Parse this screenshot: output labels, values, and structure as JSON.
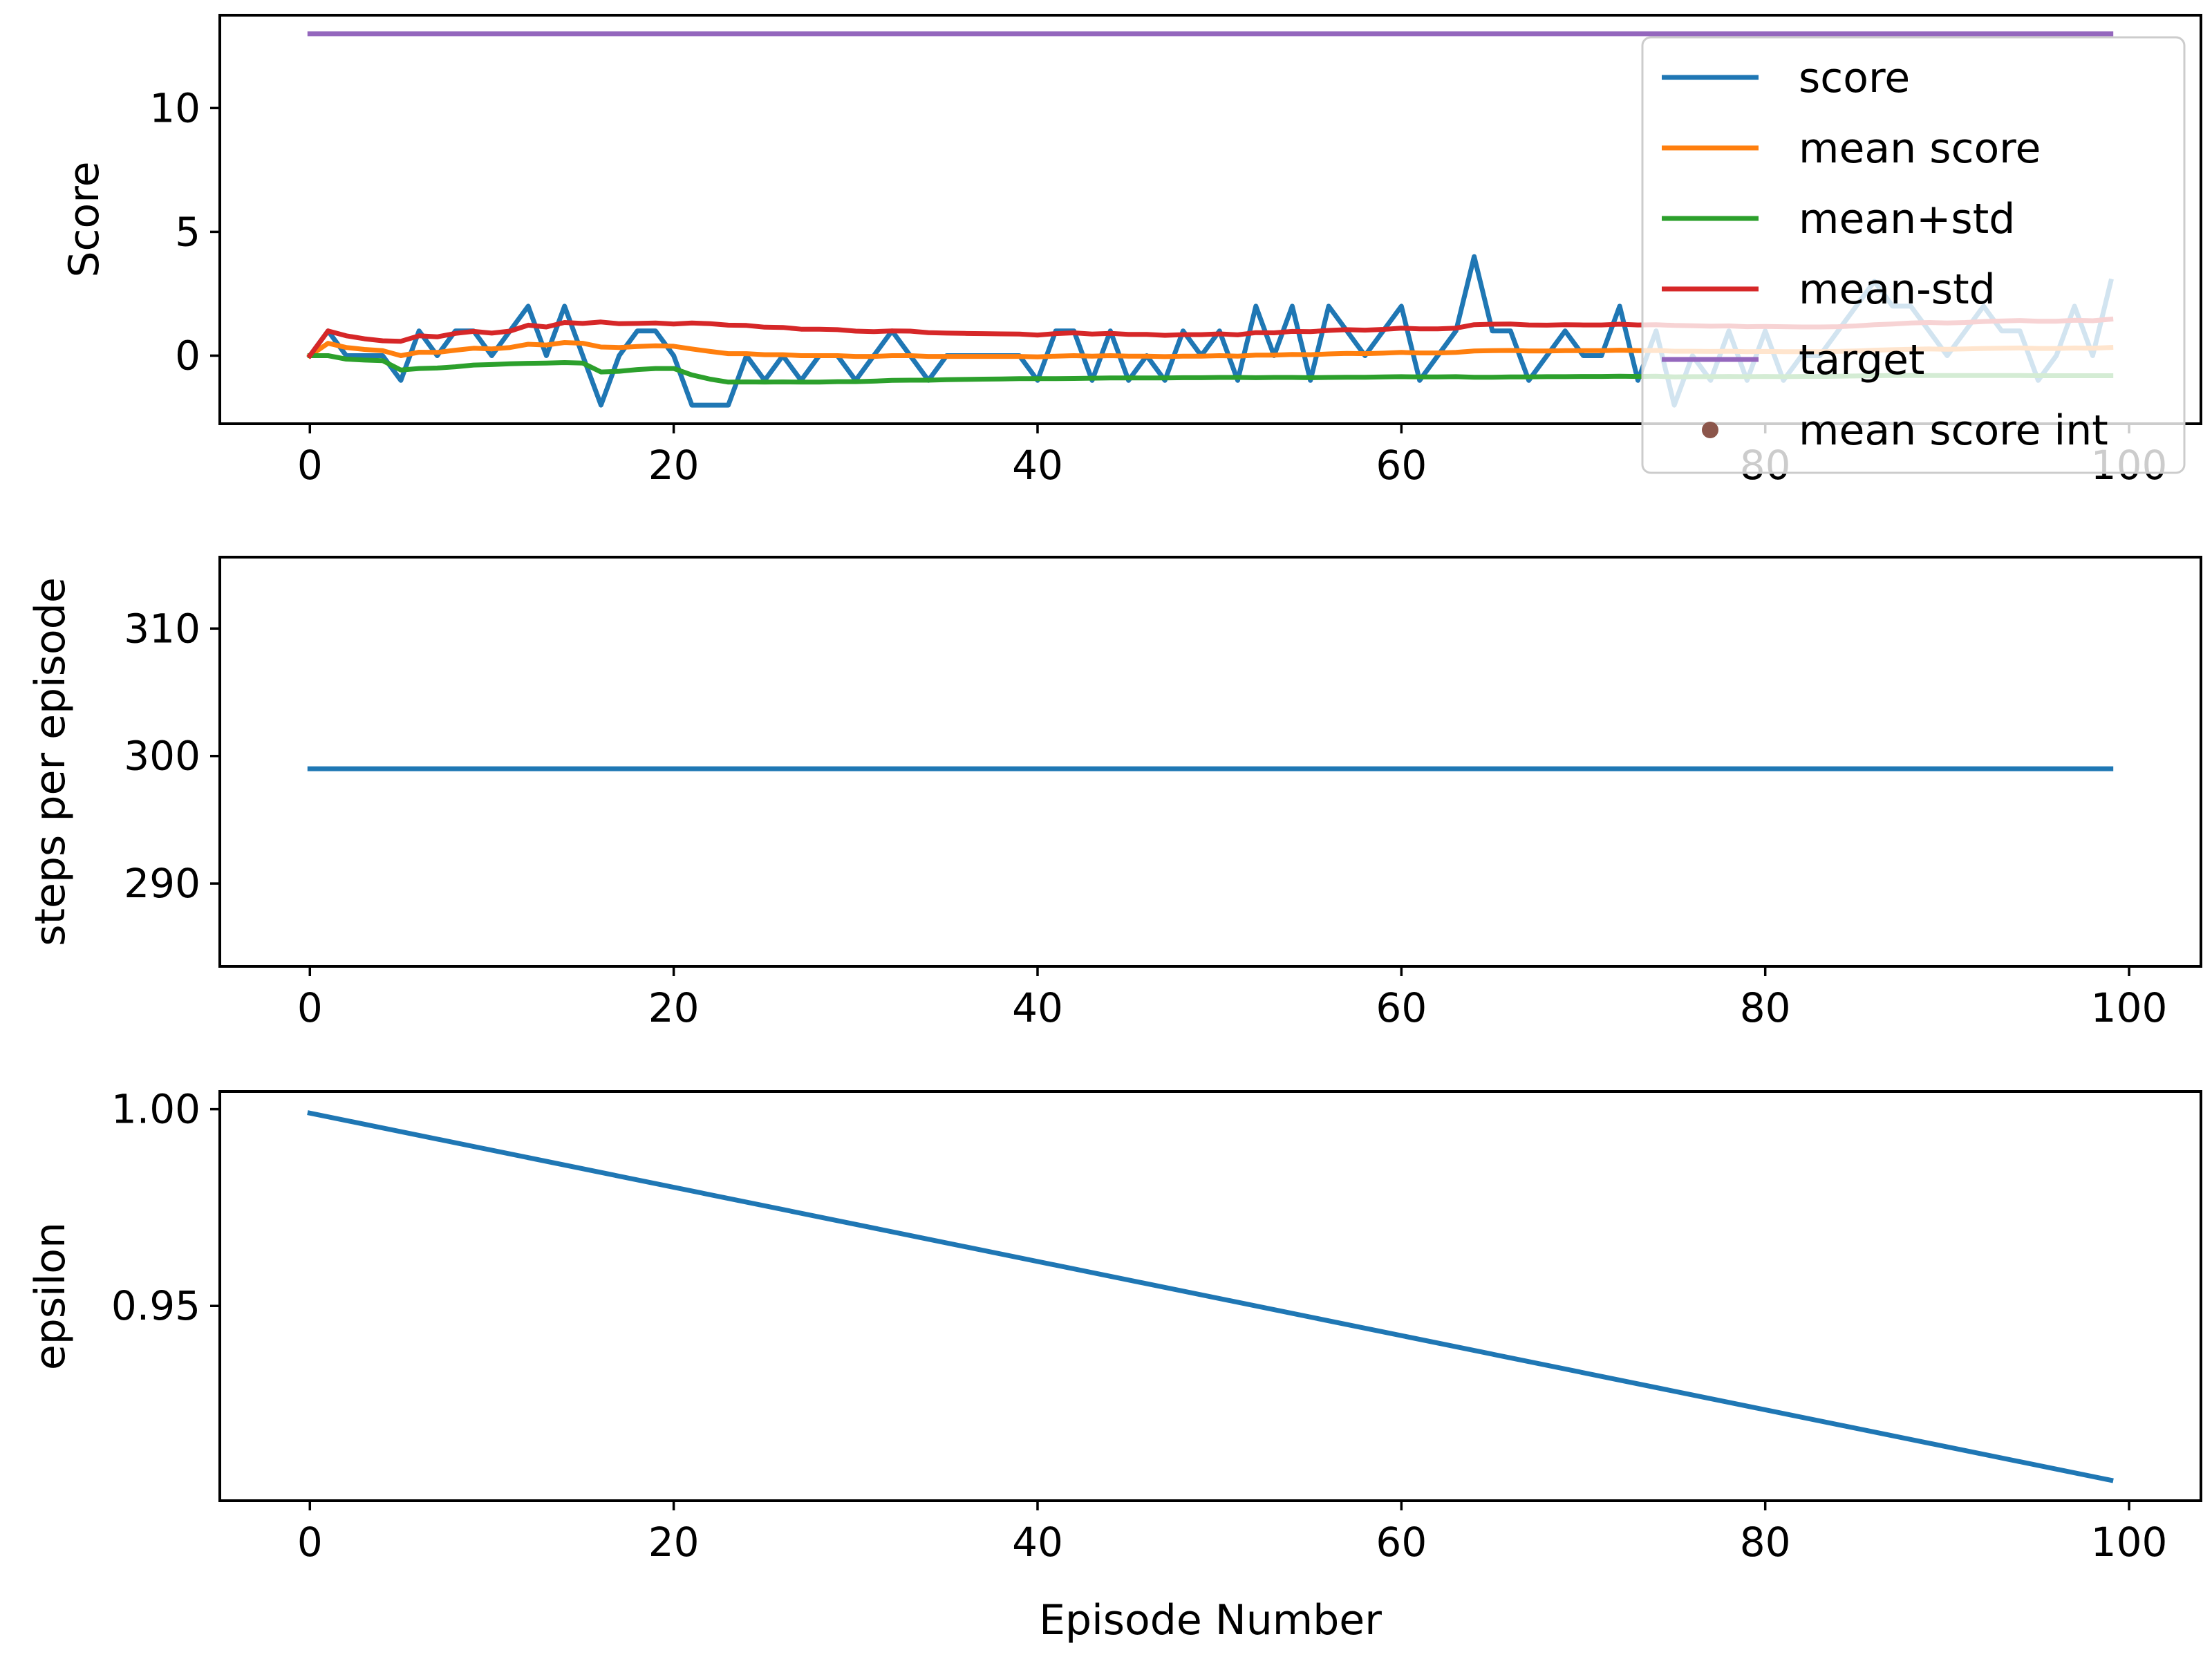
{
  "chart_data": [
    {
      "type": "line",
      "id": "score-panel",
      "title": "",
      "xlabel": "",
      "ylabel": "Score",
      "xlim": [
        -4.95,
        103.95
      ],
      "ylim": [
        -2.75,
        13.75
      ],
      "xticks": [
        0,
        20,
        40,
        60,
        80,
        100
      ],
      "yticks": [
        0,
        5,
        10
      ],
      "grid": false,
      "legend_placement": "upper right",
      "series": [
        {
          "name": "score",
          "color": "#1f77b4",
          "x": [
            0,
            1,
            2,
            3,
            4,
            5,
            6,
            7,
            8,
            9,
            10,
            11,
            12,
            13,
            14,
            15,
            16,
            17,
            18,
            19,
            20,
            21,
            22,
            23,
            24,
            25,
            26,
            27,
            28,
            29,
            30,
            31,
            32,
            33,
            34,
            35,
            36,
            37,
            38,
            39,
            40,
            41,
            42,
            43,
            44,
            45,
            46,
            47,
            48,
            49,
            50,
            51,
            52,
            53,
            54,
            55,
            56,
            57,
            58,
            59,
            60,
            61,
            62,
            63,
            64,
            65,
            66,
            67,
            68,
            69,
            70,
            71,
            72,
            73,
            74,
            75,
            76,
            77,
            78,
            79,
            80,
            81,
            82,
            83,
            84,
            85,
            86,
            87,
            88,
            89,
            90,
            91,
            92,
            93,
            94,
            95,
            96,
            97,
            98,
            99
          ],
          "values": [
            0,
            1,
            0,
            0,
            0,
            -1,
            1,
            0,
            1,
            1,
            0,
            1,
            2,
            0,
            2,
            0,
            -2,
            0,
            1,
            1,
            0,
            -2,
            -2,
            -2,
            0,
            -1,
            0,
            -1,
            0,
            0,
            -1,
            0,
            1,
            0,
            -1,
            0,
            0,
            0,
            0,
            0,
            -1,
            1,
            1,
            -1,
            1,
            -1,
            0,
            -1,
            1,
            0,
            1,
            -1,
            2,
            0,
            2,
            -1,
            2,
            1,
            0,
            1,
            2,
            -1,
            0,
            1,
            4,
            1,
            1,
            -1,
            0,
            1,
            0,
            0,
            2,
            -1,
            1,
            -2,
            0,
            -1,
            1,
            -1,
            1,
            -1,
            0,
            0,
            1,
            2,
            3,
            2,
            2,
            1,
            0,
            1,
            2,
            1,
            1,
            -1,
            0,
            2,
            0,
            3
          ]
        },
        {
          "name": "mean score",
          "color": "#ff7f0e",
          "x": [
            0,
            1,
            2,
            3,
            4,
            5,
            6,
            7,
            8,
            9,
            10,
            11,
            12,
            13,
            14,
            15,
            16,
            17,
            18,
            19,
            20,
            21,
            22,
            23,
            24,
            25,
            26,
            27,
            28,
            29,
            30,
            31,
            32,
            33,
            34,
            35,
            36,
            37,
            38,
            39,
            40,
            41,
            42,
            43,
            44,
            45,
            46,
            47,
            48,
            49,
            50,
            51,
            52,
            53,
            54,
            55,
            56,
            57,
            58,
            59,
            60,
            61,
            62,
            63,
            64,
            65,
            66,
            67,
            68,
            69,
            70,
            71,
            72,
            73,
            74,
            75,
            76,
            77,
            78,
            79,
            80,
            81,
            82,
            83,
            84,
            85,
            86,
            87,
            88,
            89,
            90,
            91,
            92,
            93,
            94,
            95,
            96,
            97,
            98,
            99
          ],
          "values": [
            0,
            0.5,
            0.33,
            0.25,
            0.2,
            0,
            0.14,
            0.13,
            0.22,
            0.3,
            0.27,
            0.33,
            0.46,
            0.43,
            0.53,
            0.5,
            0.35,
            0.33,
            0.37,
            0.4,
            0.38,
            0.27,
            0.17,
            0.08,
            0.08,
            0.04,
            0.04,
            0,
            0,
            0,
            -0.03,
            -0.03,
            0,
            0,
            -0.03,
            -0.03,
            -0.03,
            -0.03,
            -0.03,
            -0.03,
            -0.05,
            -0.02,
            0,
            -0.02,
            0,
            -0.02,
            -0.02,
            -0.04,
            -0.02,
            -0.02,
            0,
            -0.02,
            0.02,
            0.02,
            0.05,
            0.04,
            0.07,
            0.09,
            0.08,
            0.1,
            0.13,
            0.11,
            0.11,
            0.13,
            0.19,
            0.2,
            0.21,
            0.19,
            0.19,
            0.2,
            0.2,
            0.2,
            0.22,
            0.2,
            0.21,
            0.18,
            0.18,
            0.17,
            0.18,
            0.16,
            0.17,
            0.16,
            0.16,
            0.16,
            0.17,
            0.19,
            0.22,
            0.24,
            0.26,
            0.27,
            0.26,
            0.27,
            0.29,
            0.3,
            0.31,
            0.29,
            0.29,
            0.31,
            0.3,
            0.33
          ]
        },
        {
          "name": "mean+std",
          "color": "#2ca02c",
          "x": [
            0,
            1,
            2,
            3,
            4,
            5,
            6,
            7,
            8,
            9,
            10,
            11,
            12,
            13,
            14,
            15,
            16,
            17,
            18,
            19,
            20,
            21,
            22,
            23,
            24,
            25,
            26,
            27,
            28,
            29,
            30,
            31,
            32,
            33,
            34,
            35,
            36,
            37,
            38,
            39,
            40,
            41,
            42,
            43,
            44,
            45,
            46,
            47,
            48,
            49,
            50,
            51,
            52,
            53,
            54,
            55,
            56,
            57,
            58,
            59,
            60,
            61,
            62,
            63,
            64,
            65,
            66,
            67,
            68,
            69,
            70,
            71,
            72,
            73,
            74,
            75,
            76,
            77,
            78,
            79,
            80,
            81,
            82,
            83,
            84,
            85,
            86,
            87,
            88,
            89,
            90,
            91,
            92,
            93,
            94,
            95,
            96,
            97,
            98,
            99
          ],
          "values": [
            0,
            0,
            -0.14,
            -0.18,
            -0.2,
            -0.58,
            -0.52,
            -0.5,
            -0.45,
            -0.38,
            -0.36,
            -0.33,
            -0.31,
            -0.3,
            -0.28,
            -0.3,
            -0.66,
            -0.63,
            -0.56,
            -0.52,
            -0.52,
            -0.78,
            -0.95,
            -1.07,
            -1.06,
            -1.07,
            -1.06,
            -1.07,
            -1.07,
            -1.05,
            -1.05,
            -1.03,
            -1.0,
            -0.99,
            -0.99,
            -0.97,
            -0.96,
            -0.95,
            -0.94,
            -0.93,
            -0.93,
            -0.93,
            -0.92,
            -0.91,
            -0.9,
            -0.9,
            -0.9,
            -0.9,
            -0.89,
            -0.89,
            -0.88,
            -0.88,
            -0.89,
            -0.88,
            -0.88,
            -0.89,
            -0.88,
            -0.87,
            -0.87,
            -0.86,
            -0.85,
            -0.86,
            -0.86,
            -0.85,
            -0.87,
            -0.87,
            -0.86,
            -0.86,
            -0.85,
            -0.85,
            -0.84,
            -0.84,
            -0.83,
            -0.84,
            -0.83,
            -0.86,
            -0.85,
            -0.85,
            -0.84,
            -0.85,
            -0.84,
            -0.85,
            -0.84,
            -0.84,
            -0.83,
            -0.82,
            -0.81,
            -0.8,
            -0.8,
            -0.8,
            -0.8,
            -0.8,
            -0.8,
            -0.8,
            -0.8,
            -0.81,
            -0.81,
            -0.81,
            -0.81,
            -0.81
          ]
        },
        {
          "name": "mean-std",
          "color": "#d62728",
          "x": [
            0,
            1,
            2,
            3,
            4,
            5,
            6,
            7,
            8,
            9,
            10,
            11,
            12,
            13,
            14,
            15,
            16,
            17,
            18,
            19,
            20,
            21,
            22,
            23,
            24,
            25,
            26,
            27,
            28,
            29,
            30,
            31,
            32,
            33,
            34,
            35,
            36,
            37,
            38,
            39,
            40,
            41,
            42,
            43,
            44,
            45,
            46,
            47,
            48,
            49,
            50,
            51,
            52,
            53,
            54,
            55,
            56,
            57,
            58,
            59,
            60,
            61,
            62,
            63,
            64,
            65,
            66,
            67,
            68,
            69,
            70,
            71,
            72,
            73,
            74,
            75,
            76,
            77,
            78,
            79,
            80,
            81,
            82,
            83,
            84,
            85,
            86,
            87,
            88,
            89,
            90,
            91,
            92,
            93,
            94,
            95,
            96,
            97,
            98,
            99
          ],
          "values": [
            0,
            1,
            0.8,
            0.68,
            0.6,
            0.58,
            0.8,
            0.76,
            0.9,
            0.98,
            0.91,
            0.99,
            1.23,
            1.16,
            1.34,
            1.3,
            1.36,
            1.29,
            1.3,
            1.32,
            1.28,
            1.32,
            1.29,
            1.23,
            1.22,
            1.15,
            1.14,
            1.07,
            1.07,
            1.05,
            0.99,
            0.97,
            1.0,
            0.99,
            0.93,
            0.91,
            0.9,
            0.89,
            0.88,
            0.87,
            0.83,
            0.89,
            0.92,
            0.87,
            0.9,
            0.86,
            0.86,
            0.82,
            0.85,
            0.85,
            0.88,
            0.84,
            0.93,
            0.92,
            0.98,
            0.97,
            1.02,
            1.05,
            1.03,
            1.06,
            1.11,
            1.08,
            1.08,
            1.11,
            1.25,
            1.27,
            1.28,
            1.24,
            1.23,
            1.25,
            1.24,
            1.24,
            1.27,
            1.24,
            1.25,
            1.22,
            1.21,
            1.19,
            1.2,
            1.17,
            1.18,
            1.17,
            1.16,
            1.16,
            1.17,
            1.2,
            1.25,
            1.28,
            1.32,
            1.34,
            1.32,
            1.34,
            1.38,
            1.4,
            1.42,
            1.39,
            1.39,
            1.43,
            1.41,
            1.47
          ]
        },
        {
          "name": "target",
          "color": "#9467bd",
          "x": [
            0,
            99
          ],
          "values": [
            13,
            13
          ]
        },
        {
          "name": "mean score int",
          "color": "#8c564b",
          "marker": "point",
          "x": [],
          "values": []
        }
      ]
    },
    {
      "type": "line",
      "id": "steps-panel",
      "title": "",
      "xlabel": "",
      "ylabel": "steps per episode",
      "xlim": [
        -4.95,
        103.95
      ],
      "ylim": [
        283.5,
        315.6
      ],
      "xticks": [
        0,
        20,
        40,
        60,
        80,
        100
      ],
      "yticks": [
        290,
        300,
        310
      ],
      "grid": false,
      "series": [
        {
          "color": "#1f77b4",
          "x": [
            0,
            99
          ],
          "values": [
            299,
            299
          ]
        }
      ]
    },
    {
      "type": "line",
      "id": "epsilon-panel",
      "title": "",
      "xlabel": "Episode Number",
      "ylabel": "epsilon",
      "xlim": [
        -4.95,
        103.95
      ],
      "ylim": [
        0.9005,
        1.0045
      ],
      "xticks": [
        0,
        20,
        40,
        60,
        80,
        100
      ],
      "yticks": [
        0.95,
        1.0
      ],
      "ytick_labels": [
        "0.95",
        "1.00"
      ],
      "grid": false,
      "series": [
        {
          "color": "#1f77b4",
          "x": [
            0,
            99
          ],
          "values": [
            0.999,
            0.9057
          ]
        }
      ]
    }
  ]
}
